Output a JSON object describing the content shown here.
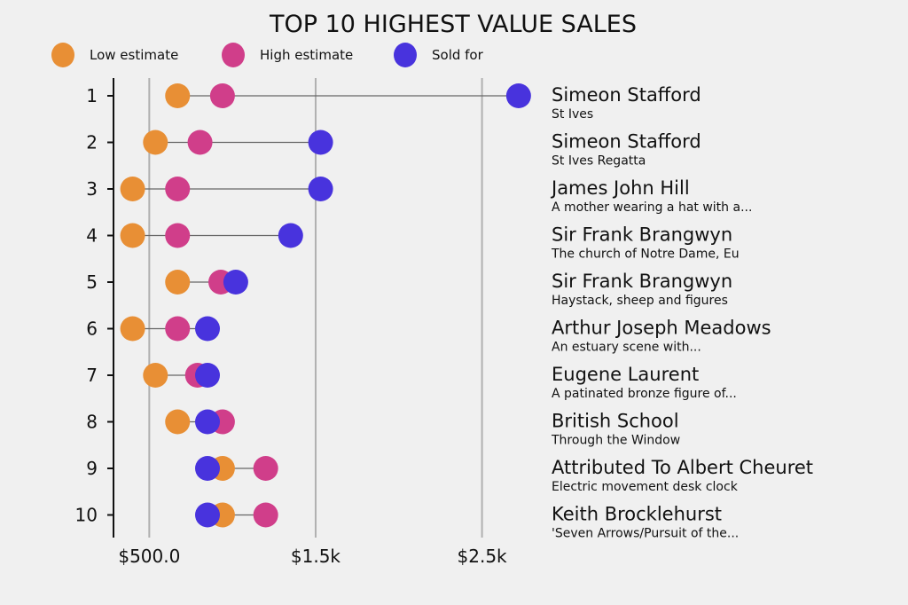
{
  "chart_data": {
    "type": "dumbbell",
    "title": "TOP 10 HIGHEST VALUE SALES",
    "legend": [
      {
        "name": "Low estimate",
        "color": "#e88f35"
      },
      {
        "name": "High estimate",
        "color": "#d03e8a"
      },
      {
        "name": "Sold for",
        "color": "#4833dd"
      }
    ],
    "legend_placement": "top-left",
    "xlim": [
      285,
      2790
    ],
    "x_ticks": [
      {
        "value": 500,
        "label": "$500.0"
      },
      {
        "value": 1500,
        "label": "$1.5k"
      },
      {
        "value": 2500,
        "label": "$2.5k"
      }
    ],
    "grid": true,
    "rows": [
      {
        "rank": "1",
        "artist": "Simeon Stafford",
        "work": "St Ives",
        "low": 670,
        "high": 940,
        "sold": 2720
      },
      {
        "rank": "2",
        "artist": "Simeon Stafford",
        "work": "St Ives Regatta",
        "low": 537,
        "high": 805,
        "sold": 1530
      },
      {
        "rank": "3",
        "artist": "James John Hill",
        "work": "A mother wearing a hat with a...",
        "low": 400,
        "high": 670,
        "sold": 1530
      },
      {
        "rank": "4",
        "artist": "Sir Frank Brangwyn",
        "work": "The church of Notre Dame, Eu",
        "low": 400,
        "high": 670,
        "sold": 1350
      },
      {
        "rank": "5",
        "artist": "Sir Frank Brangwyn",
        "work": "Haystack, sheep and figures",
        "low": 670,
        "high": 930,
        "sold": 1020
      },
      {
        "rank": "6",
        "artist": "Arthur Joseph Meadows",
        "work": "An estuary scene with...",
        "low": 400,
        "high": 670,
        "sold": 850
      },
      {
        "rank": "7",
        "artist": "Eugene Laurent",
        "work": "A patinated bronze figure of...",
        "low": 537,
        "high": 790,
        "sold": 850
      },
      {
        "rank": "8",
        "artist": "British School",
        "work": "Through the Window",
        "low": 670,
        "high": 940,
        "sold": 850
      },
      {
        "rank": "9",
        "artist": "Attributed To Albert Cheuret",
        "work": "Electric movement desk clock",
        "low": 940,
        "high": 1200,
        "sold": 850
      },
      {
        "rank": "10",
        "artist": "Keith Brocklehurst",
        "work": "'Seven Arrows/Pursuit of the...",
        "low": 940,
        "high": 1200,
        "sold": 850
      }
    ]
  }
}
